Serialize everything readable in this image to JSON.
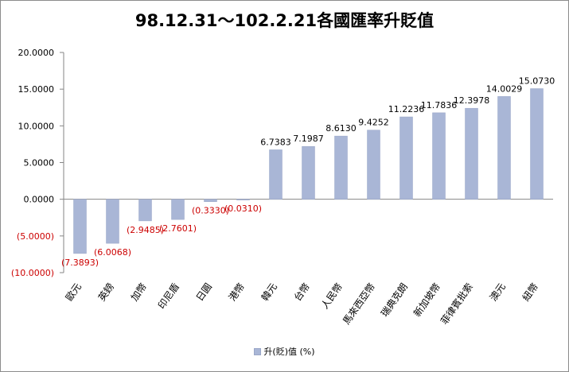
{
  "chart_data": {
    "type": "bar",
    "title": "98.12.31～102.2.21各國匯率升貶值",
    "categories": [
      "歐元",
      "英鎊",
      "加幣",
      "印尼盾",
      "日圓",
      "港幣",
      "韓元",
      "台幣",
      "人民幣",
      "馬來西亞幣",
      "瑞典克朗",
      "新加坡幣",
      "菲律賓批索",
      "澳元",
      "紐幣"
    ],
    "series": [
      {
        "name": "升(貶)值 (%)",
        "values": [
          -7.3893,
          -6.0068,
          -2.9485,
          -2.7601,
          -0.333,
          -0.031,
          6.7383,
          7.1987,
          8.613,
          9.4252,
          11.2236,
          11.7836,
          12.3978,
          14.0029,
          15.073
        ]
      }
    ],
    "data_labels": [
      "(7.3893)",
      "(6.0068)",
      "(2.9485)",
      "(2.7601)",
      "(0.3330)",
      "(0.0310)",
      "6.7383",
      "7.1987",
      "8.6130",
      "9.4252",
      "11.2236",
      "11.7836",
      "12.3978",
      "14.0029",
      "15.0730"
    ],
    "yticks": [
      20,
      15,
      10,
      5,
      0,
      -5,
      -10
    ],
    "ytick_labels": [
      "20.0000",
      "15.0000",
      "10.0000",
      "5.0000",
      "0.0000",
      "(5.0000)",
      "(10.0000)"
    ],
    "ylim": [
      -10,
      20
    ],
    "xlabel": "",
    "ylabel": "",
    "grid": false,
    "legend": "bottom",
    "colors": {
      "bar": "#a9b6d6",
      "bar_edge": "#9aa7c8",
      "negative_text": "#cc0000",
      "positive_text": "#000000",
      "axis": "#868686"
    }
  }
}
